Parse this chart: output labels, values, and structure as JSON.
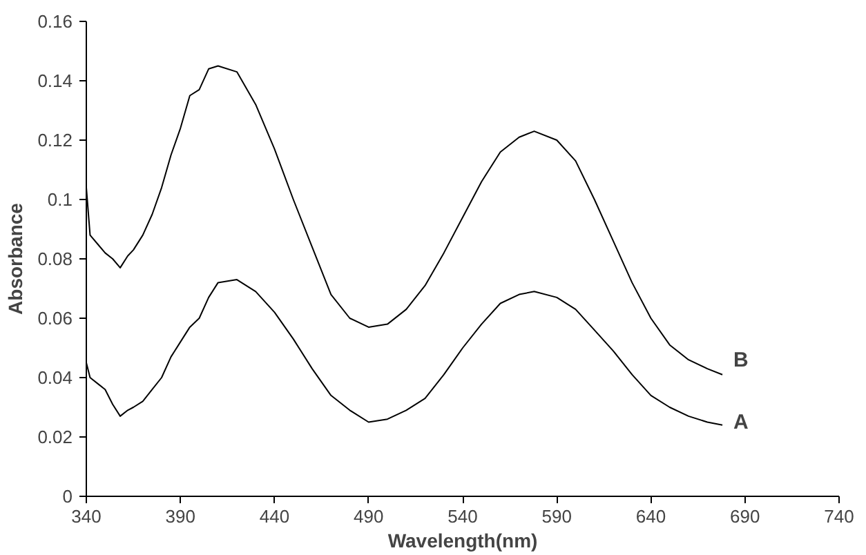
{
  "chart_data": {
    "type": "line",
    "xlabel": "Wavelength(nm)",
    "ylabel": "Absorbance",
    "xlim": [
      340,
      740
    ],
    "xticks": [
      340,
      390,
      440,
      490,
      540,
      590,
      640,
      690,
      740
    ],
    "ylim": [
      0,
      0.16
    ],
    "yticks": [
      0,
      0.02,
      0.04,
      0.06,
      0.08,
      0.1,
      0.12,
      0.14,
      0.16
    ],
    "grid": false,
    "legend": false,
    "marker": "none",
    "line_style": "solid",
    "x": [
      340,
      342,
      346,
      350,
      354,
      358,
      362,
      365,
      370,
      375,
      380,
      385,
      390,
      395,
      400,
      405,
      410,
      420,
      430,
      440,
      450,
      460,
      470,
      480,
      490,
      500,
      510,
      520,
      530,
      540,
      550,
      560,
      570,
      578,
      590,
      600,
      610,
      620,
      630,
      640,
      650,
      660,
      670,
      678
    ],
    "series": [
      {
        "name": "B",
        "color": "#000000",
        "values": [
          0.104,
          0.088,
          0.085,
          0.082,
          0.08,
          0.077,
          0.081,
          0.083,
          0.088,
          0.095,
          0.104,
          0.115,
          0.124,
          0.135,
          0.137,
          0.144,
          0.145,
          0.143,
          0.132,
          0.117,
          0.1,
          0.084,
          0.068,
          0.06,
          0.057,
          0.058,
          0.063,
          0.071,
          0.082,
          0.094,
          0.106,
          0.116,
          0.121,
          0.123,
          0.12,
          0.113,
          0.1,
          0.086,
          0.072,
          0.06,
          0.051,
          0.046,
          0.043,
          0.041
        ]
      },
      {
        "name": "A",
        "color": "#000000",
        "values": [
          0.045,
          0.04,
          0.038,
          0.036,
          0.031,
          0.027,
          0.029,
          0.03,
          0.032,
          0.036,
          0.04,
          0.047,
          0.052,
          0.057,
          0.06,
          0.067,
          0.072,
          0.073,
          0.069,
          0.062,
          0.053,
          0.043,
          0.034,
          0.029,
          0.025,
          0.026,
          0.029,
          0.033,
          0.041,
          0.05,
          0.058,
          0.065,
          0.068,
          0.069,
          0.067,
          0.063,
          0.056,
          0.049,
          0.041,
          0.034,
          0.03,
          0.027,
          0.025,
          0.024
        ]
      }
    ]
  }
}
